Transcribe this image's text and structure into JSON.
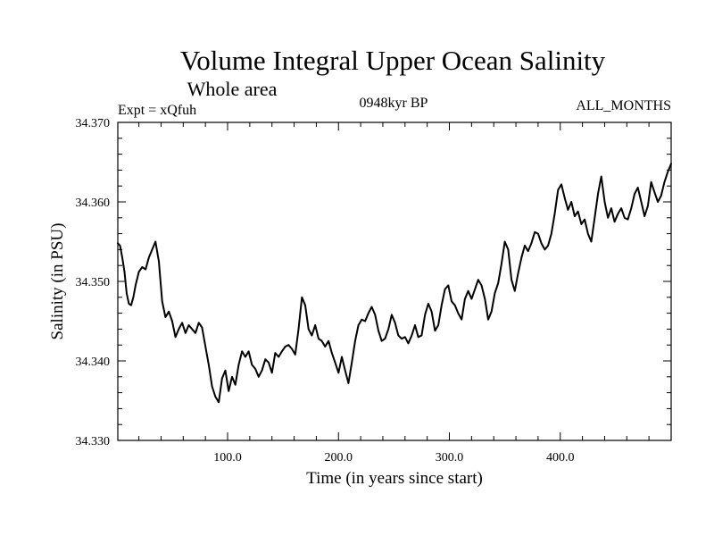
{
  "chart_data": {
    "type": "line",
    "title": "Volume Integral Upper Ocean Salinity",
    "subtitle": "Whole area",
    "left_label": "Expt = xQfuh",
    "center_label": "0948kyr BP",
    "right_label": "ALL_MONTHS",
    "xlabel": "Time (in years since start)",
    "ylabel": "Salinity (in PSU)",
    "xlim": [
      1,
      500
    ],
    "ylim": [
      34.33,
      34.37
    ],
    "x_ticks": [
      100,
      200,
      300,
      400
    ],
    "x_tick_labels": [
      "100.0",
      "200.0",
      "300.0",
      "400.0"
    ],
    "y_ticks": [
      34.33,
      34.34,
      34.35,
      34.36,
      34.37
    ],
    "y_tick_labels": [
      "34.330",
      "34.340",
      "34.350",
      "34.360",
      "34.370"
    ],
    "grid": false,
    "line_color": "#000000",
    "series": [
      {
        "name": "Salinity",
        "x": [
          1,
          3,
          5,
          7,
          9,
          11,
          13,
          15,
          17,
          20,
          23,
          26,
          29,
          32,
          35,
          38,
          41,
          44,
          47,
          50,
          53,
          56,
          59,
          62,
          65,
          68,
          71,
          74,
          77,
          80,
          83,
          86,
          89,
          92,
          95,
          98,
          101,
          104,
          107,
          110,
          113,
          116,
          119,
          122,
          125,
          128,
          131,
          134,
          137,
          140,
          143,
          146,
          149,
          152,
          155,
          158,
          161,
          164,
          167,
          170,
          173,
          176,
          179,
          182,
          185,
          188,
          191,
          194,
          197,
          200,
          203,
          206,
          209,
          212,
          215,
          218,
          221,
          224,
          227,
          230,
          233,
          236,
          239,
          242,
          245,
          248,
          251,
          254,
          257,
          260,
          263,
          266,
          269,
          272,
          275,
          278,
          281,
          284,
          287,
          290,
          293,
          296,
          299,
          302,
          305,
          308,
          311,
          314,
          317,
          320,
          323,
          326,
          329,
          332,
          335,
          338,
          341,
          344,
          347,
          350,
          353,
          356,
          359,
          362,
          365,
          368,
          371,
          374,
          377,
          380,
          383,
          386,
          389,
          392,
          395,
          398,
          401,
          404,
          407,
          410,
          413,
          416,
          419,
          422,
          425,
          428,
          431,
          434,
          437,
          440,
          443,
          446,
          449,
          452,
          455,
          458,
          461,
          464,
          467,
          470,
          473,
          476,
          479,
          482,
          485,
          488,
          491,
          494,
          497,
          500
        ],
        "values": [
          34.3548,
          34.3545,
          34.353,
          34.3512,
          34.3485,
          34.3472,
          34.347,
          34.348,
          34.3495,
          34.3512,
          34.3518,
          34.3515,
          34.353,
          34.354,
          34.355,
          34.3525,
          34.3475,
          34.3455,
          34.3462,
          34.345,
          34.343,
          34.344,
          34.3448,
          34.3435,
          34.3445,
          34.344,
          34.3435,
          34.3448,
          34.3442,
          34.3418,
          34.3395,
          34.3368,
          34.3355,
          34.3348,
          34.3378,
          34.3388,
          34.3362,
          34.338,
          34.337,
          34.3395,
          34.3412,
          34.3405,
          34.3412,
          34.3395,
          34.339,
          34.338,
          34.3388,
          34.3402,
          34.3398,
          34.3385,
          34.341,
          34.3405,
          34.3412,
          34.3418,
          34.342,
          34.3415,
          34.3408,
          34.344,
          34.348,
          34.347,
          34.344,
          34.3432,
          34.3445,
          34.3428,
          34.3425,
          34.3418,
          34.3425,
          34.341,
          34.3398,
          34.3385,
          34.3405,
          34.3388,
          34.3372,
          34.3398,
          34.3425,
          34.3445,
          34.3452,
          34.345,
          34.346,
          34.3468,
          34.3458,
          34.3438,
          34.3425,
          34.3428,
          34.344,
          34.3458,
          34.3448,
          34.3432,
          34.3428,
          34.343,
          34.3422,
          34.3432,
          34.3445,
          34.343,
          34.3432,
          34.3458,
          34.3472,
          34.3462,
          34.3438,
          34.3445,
          34.347,
          34.349,
          34.3495,
          34.3475,
          34.347,
          34.346,
          34.3452,
          34.3478,
          34.3488,
          34.3478,
          34.349,
          34.3502,
          34.3495,
          34.3478,
          34.3452,
          34.3462,
          34.3485,
          34.3498,
          34.3522,
          34.355,
          34.354,
          34.3502,
          34.3488,
          34.351,
          34.353,
          34.3545,
          34.3538,
          34.3548,
          34.3562,
          34.356,
          34.3548,
          34.354,
          34.3545,
          34.356,
          34.3585,
          34.3615,
          34.3622,
          34.3605,
          34.359,
          34.36,
          34.3582,
          34.3588,
          34.3572,
          34.3578,
          34.356,
          34.355,
          34.358,
          34.361,
          34.3632,
          34.36,
          34.358,
          34.3592,
          34.3575,
          34.3585,
          34.3592,
          34.358,
          34.3578,
          34.3592,
          34.361,
          34.3618,
          34.36,
          34.3582,
          34.3595,
          34.3625,
          34.3612,
          34.36,
          34.3608,
          34.3625,
          34.3638,
          34.3648
        ]
      }
    ]
  }
}
